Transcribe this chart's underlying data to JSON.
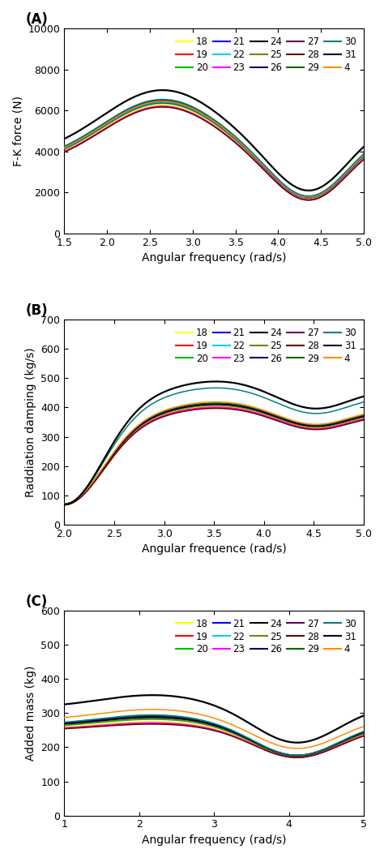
{
  "legend_labels": [
    "18",
    "19",
    "20",
    "21",
    "22",
    "23",
    "24",
    "25",
    "26",
    "27",
    "28",
    "29",
    "30",
    "31",
    "4"
  ],
  "legend_colors": [
    "#ffff00",
    "#ff0000",
    "#00bb00",
    "#0000ff",
    "#00ccff",
    "#ff00ff",
    "#000000",
    "#808000",
    "#000066",
    "#660066",
    "#660000",
    "#006600",
    "#008080",
    "#000033",
    "#ff8c00"
  ],
  "panel_A": {
    "label": "(A)",
    "xlabel": "Angular frequency (rad/s)",
    "ylabel": "F-K force (N)",
    "xlim": [
      1.5,
      5.0
    ],
    "ylim": [
      0,
      10000
    ],
    "xticks": [
      1.5,
      2.0,
      2.5,
      3.0,
      3.5,
      4.0,
      4.5,
      5.0
    ],
    "yticks": [
      0,
      2000,
      4000,
      6000,
      8000,
      10000
    ]
  },
  "panel_B": {
    "label": "(B)",
    "xlabel": "Angular frequence (rad/s)",
    "ylabel": "Raddiation damping (kg/s)",
    "xlim": [
      2.0,
      5.0
    ],
    "ylim": [
      0,
      700
    ],
    "xticks": [
      2.0,
      2.5,
      3.0,
      3.5,
      4.0,
      4.5,
      5.0
    ],
    "yticks": [
      0,
      100,
      200,
      300,
      400,
      500,
      600,
      700
    ]
  },
  "panel_C": {
    "label": "(C)",
    "xlabel": "Angular frequency (rad/s)",
    "ylabel": "Added mass (kg)",
    "xlim": [
      1,
      5
    ],
    "ylim": [
      0,
      600
    ],
    "xticks": [
      1,
      2,
      3,
      4,
      5
    ],
    "yticks": [
      0,
      100,
      200,
      300,
      400,
      500,
      600
    ]
  },
  "figsize": [
    4.74,
    10.58
  ],
  "dpi": 100
}
